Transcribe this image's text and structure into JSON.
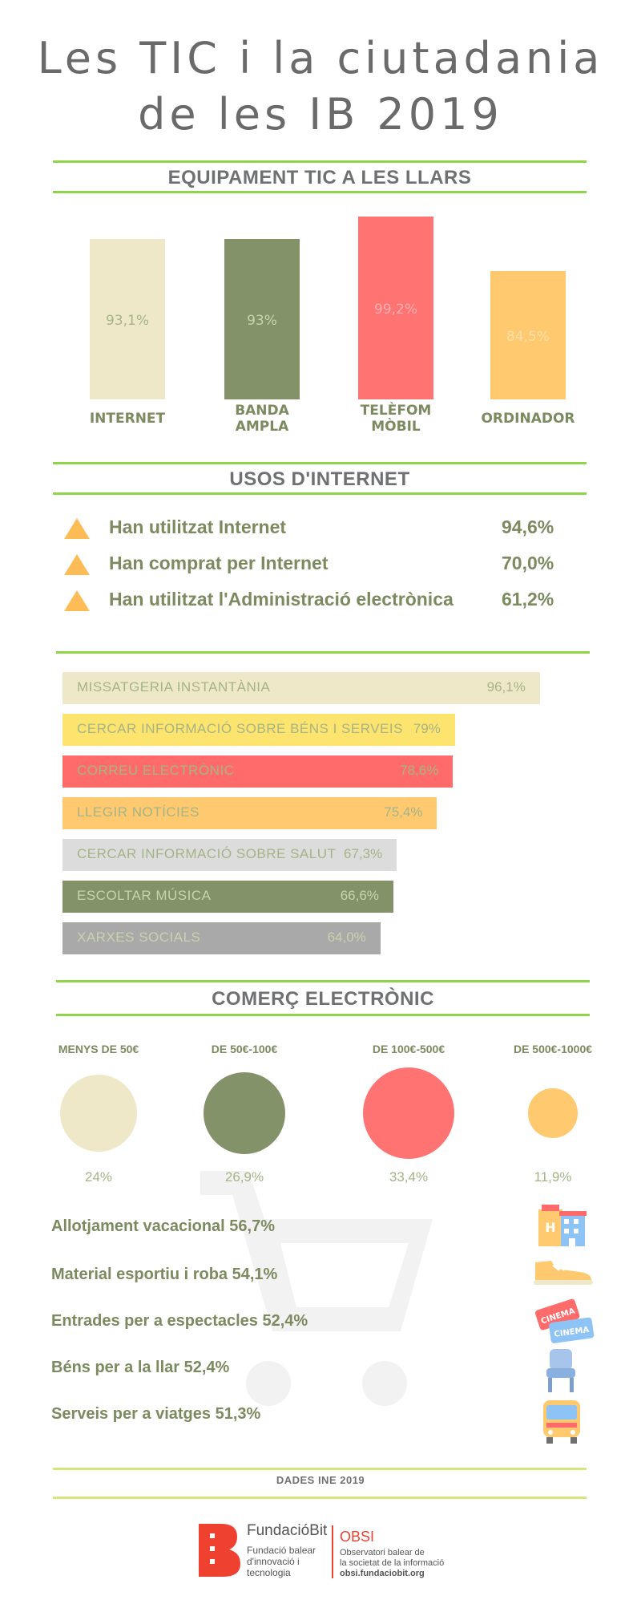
{
  "title": "Les TIC i la ciutadania de les IB 2019",
  "sections": {
    "equipment_title": "EQUIPAMENT TIC A LES LLARS",
    "usage_title": "USOS D'INTERNET",
    "commerce_title": "COMERÇ ELECTRÒNIC"
  },
  "chart_data": [
    {
      "type": "bar",
      "categories": [
        "INTERNET",
        "BANDA AMPLA",
        "TELÈFOM MÒBIL",
        "ORDINADOR"
      ],
      "values": [
        93.1,
        93,
        99.2,
        84.5
      ],
      "value_labels": [
        "93,1%",
        "93%",
        "99,2%",
        "84,5%"
      ],
      "colors": [
        "#efe8c8",
        "#84926a",
        "#ff7373",
        "#fec96f"
      ],
      "ylim": [
        0,
        100
      ]
    },
    {
      "type": "bar",
      "orientation": "horizontal",
      "categories": [
        "MISSATGERIA INSTANTÀNIA",
        "CERCAR INFORMACIÓ SOBRE BÉNS I SERVEIS",
        "CORREU ELECTRÒNIC",
        "LLEGIR NOTÍCIES",
        "CERCAR INFORMACIÓ SOBRE SALUT",
        "ESCOLTAR MÚSICA",
        "XARXES SOCIALS"
      ],
      "values": [
        96.1,
        79,
        78.6,
        75.4,
        67.3,
        66.6,
        64.0
      ],
      "value_labels": [
        "96,1%",
        "79%",
        "78,6%",
        "75,4%",
        "67,3%",
        "66,6%",
        "64,0%"
      ],
      "colors": [
        "#efe8c8",
        "#fde46f",
        "#ff6b6b",
        "#fec96f",
        "#dcdcdc",
        "#84926a",
        "#a9a9a9"
      ],
      "label_colors": [
        "#a4b486",
        "#a4b486",
        "#a4b486",
        "#a4b486",
        "#a4b486",
        "#c8d3ae",
        "#c8d3ae"
      ],
      "xlim": [
        0,
        100
      ]
    },
    {
      "type": "bubble",
      "categories": [
        "MENYS DE 50€",
        "DE 50€-100€",
        "DE 100€-500€",
        "DE 500€-1000€"
      ],
      "values": [
        24,
        26.9,
        33.4,
        11.9
      ],
      "value_labels": [
        "24%",
        "26,9%",
        "33,4%",
        "11,9%"
      ],
      "colors": [
        "#efe8c8",
        "#84926a",
        "#ff7373",
        "#fec96f"
      ]
    }
  ],
  "usage_items": [
    {
      "label": "Han utilitzat Internet",
      "value": "94,6%"
    },
    {
      "label": "Han comprat per Internet",
      "value": "70,0%"
    },
    {
      "label": "Han utilitzat l'Administració electrònica",
      "value": "61,2%"
    }
  ],
  "purchase_categories": [
    {
      "label": "Allotjament vacacional 56,7%",
      "icon": "hotel-icon"
    },
    {
      "label": "Material esportiu i roba 54,1%",
      "icon": "sneaker-icon"
    },
    {
      "label": "Entrades per a espectacles 52,4%",
      "icon": "cinema-ticket-icon"
    },
    {
      "label": "Béns per a la llar 52,4%",
      "icon": "chair-icon"
    },
    {
      "label": "Serveis per a viatges 51,3%",
      "icon": "bus-icon"
    }
  ],
  "icon_texts": {
    "cinema": "CINEMA"
  },
  "footer": {
    "source": "DADES INE 2019",
    "fundacio_name": "FundacióBit",
    "fundacio_desc_1": "Fundació balear",
    "fundacio_desc_2": "d'innovació i",
    "fundacio_desc_3": "tecnologia",
    "obsi_name": "OBSI",
    "obsi_desc_1": "Observatori balear de",
    "obsi_desc_2": "la societat de la informació",
    "obsi_url": "obsi.fundaciobit.org"
  },
  "colors": {
    "green_rule": "#8fd54a",
    "text_green": "#7c8a5f",
    "title_gray": "#6a6a6a",
    "accent_red": "#ef4130",
    "triangle": "#fdbc55"
  }
}
